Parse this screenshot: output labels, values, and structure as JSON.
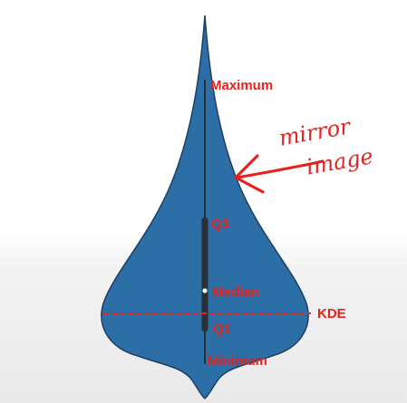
{
  "diagram": {
    "labels": {
      "maximum": "Maximum",
      "q3": "Q3",
      "median": "Median",
      "q1": "Q1",
      "minimum": "Minimum",
      "kde": "KDE"
    },
    "annotation": {
      "line1": "mirror",
      "line2": "image"
    },
    "colors": {
      "violin_fill": "#2c6ea6",
      "violin_outline": "#1c3f62",
      "box": "#2b2f36",
      "annotation_red": "#e8211c",
      "median_dot": "#ffffff"
    }
  }
}
